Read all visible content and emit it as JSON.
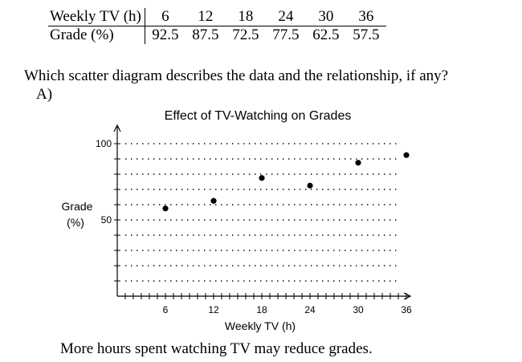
{
  "table": {
    "rows": [
      {
        "label": "Weekly TV (h)",
        "values": [
          "6",
          "12",
          "18",
          "24",
          "30",
          "36"
        ]
      },
      {
        "label": "Grade (%)",
        "values": [
          "92.5",
          "87.5",
          "72.5",
          "77.5",
          "62.5",
          "57.5"
        ]
      }
    ]
  },
  "question": "Which scatter diagram describes the data and the relationship, if any?",
  "option_letter": "A)",
  "caption": "More hours spent watching TV may reduce grades.",
  "chart_data": {
    "type": "scatter",
    "title": "Effect of TV-Watching on Grades",
    "xlabel": "Weekly TV (h)",
    "ylabel": [
      "Grade",
      "(%)"
    ],
    "xlim": [
      0,
      37
    ],
    "ylim": [
      0,
      105
    ],
    "x_ticks": [
      6,
      12,
      18,
      24,
      30,
      36
    ],
    "x_tick_labels": [
      "6",
      "12",
      "18",
      "24",
      "30",
      "36"
    ],
    "y_ticks": [
      50,
      100
    ],
    "y_tick_labels": [
      "50",
      "100"
    ],
    "grid": "dotted-horizontal",
    "points": [
      {
        "x": 6,
        "y": 57.5
      },
      {
        "x": 12,
        "y": 62.5
      },
      {
        "x": 18,
        "y": 77.5
      },
      {
        "x": 24,
        "y": 72.5
      },
      {
        "x": 30,
        "y": 87.5
      },
      {
        "x": 36,
        "y": 92.5
      }
    ]
  }
}
